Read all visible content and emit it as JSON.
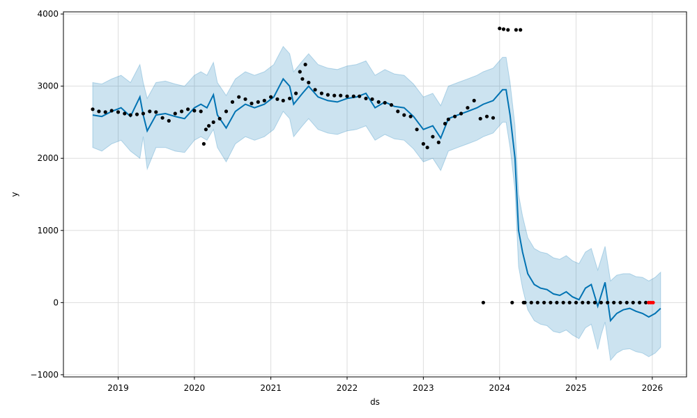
{
  "chart_data": {
    "type": "line",
    "xlabel": "ds",
    "ylabel": "y",
    "xlim": [
      "2018-04-14",
      "2026-06-14"
    ],
    "ylim": [
      -1030,
      4030
    ],
    "grid": true,
    "x_ticks": [
      "2019",
      "2020",
      "2021",
      "2022",
      "2023",
      "2024",
      "2025",
      "2026"
    ],
    "y_ticks": [
      "−1000",
      "0",
      "1000",
      "2000",
      "3000",
      "4000"
    ],
    "y_tick_values": [
      -1000,
      0,
      1000,
      2000,
      3000,
      4000
    ],
    "colors": {
      "forecast": "#0072b2",
      "uncertainty": "#0072b2",
      "observed": "#000000",
      "recent": "#ff0000",
      "grid": "#dddddd"
    },
    "series": [
      {
        "role": "forecast",
        "x": [
          "2018-09-01",
          "2018-10-15",
          "2018-12-01",
          "2019-01-15",
          "2019-03-01",
          "2019-04-15",
          "2019-05-01",
          "2019-05-20",
          "2019-07-01",
          "2019-08-15",
          "2019-10-01",
          "2019-11-15",
          "2020-01-01",
          "2020-02-01",
          "2020-03-01",
          "2020-04-01",
          "2020-04-20",
          "2020-06-01",
          "2020-07-15",
          "2020-09-01",
          "2020-10-15",
          "2020-12-01",
          "2021-01-15",
          "2021-03-01",
          "2021-04-01",
          "2021-04-20",
          "2021-06-01",
          "2021-07-01",
          "2021-08-15",
          "2021-10-01",
          "2021-11-15",
          "2022-01-01",
          "2022-02-15",
          "2022-04-01",
          "2022-05-15",
          "2022-07-01",
          "2022-08-15",
          "2022-10-01",
          "2022-11-15",
          "2023-01-01",
          "2023-02-15",
          "2023-03-25",
          "2023-05-01",
          "2023-06-15",
          "2023-08-01",
          "2023-09-15",
          "2023-10-15",
          "2023-12-01",
          "2024-01-15",
          "2024-02-01",
          "2024-02-20",
          "2024-03-15",
          "2024-04-01",
          "2024-04-20",
          "2024-05-15",
          "2024-06-15",
          "2024-07-15",
          "2024-08-15",
          "2024-09-15",
          "2024-10-15",
          "2024-11-15",
          "2024-12-15",
          "2025-01-15",
          "2025-02-15",
          "2025-03-15",
          "2025-04-15",
          "2025-05-01",
          "2025-05-20",
          "2025-06-15",
          "2025-07-15",
          "2025-08-15",
          "2025-09-15",
          "2025-10-15",
          "2025-11-15",
          "2025-12-15",
          "2026-01-15",
          "2026-02-10"
        ],
        "y": [
          2600,
          2580,
          2650,
          2700,
          2580,
          2850,
          2600,
          2380,
          2600,
          2620,
          2580,
          2550,
          2700,
          2750,
          2700,
          2880,
          2600,
          2420,
          2650,
          2750,
          2700,
          2750,
          2850,
          3100,
          3000,
          2750,
          2900,
          3000,
          2850,
          2800,
          2780,
          2830,
          2850,
          2900,
          2700,
          2780,
          2720,
          2700,
          2580,
          2400,
          2450,
          2280,
          2550,
          2600,
          2650,
          2700,
          2750,
          2800,
          2950,
          2950,
          2600,
          2000,
          1000,
          700,
          400,
          250,
          200,
          180,
          120,
          100,
          150,
          80,
          40,
          200,
          250,
          -50,
          100,
          280,
          -250,
          -150,
          -100,
          -80,
          -120,
          -150,
          -200,
          -150,
          -80
        ],
        "lower_band": [
          2150,
          2100,
          2200,
          2250,
          2100,
          2000,
          2300,
          1850,
          2150,
          2150,
          2100,
          2080,
          2250,
          2300,
          2250,
          2400,
          2150,
          1950,
          2200,
          2300,
          2250,
          2300,
          2400,
          2650,
          2550,
          2300,
          2450,
          2550,
          2400,
          2350,
          2330,
          2380,
          2400,
          2450,
          2250,
          2330,
          2270,
          2250,
          2130,
          1950,
          2000,
          1830,
          2100,
          2150,
          2200,
          2250,
          2300,
          2350,
          2500,
          2500,
          2150,
          1550,
          500,
          200,
          -100,
          -250,
          -300,
          -320,
          -400,
          -420,
          -380,
          -450,
          -500,
          -350,
          -300,
          -650,
          -450,
          -270,
          -800,
          -700,
          -650,
          -640,
          -680,
          -700,
          -750,
          -700,
          -620
        ],
        "upper_band": [
          3050,
          3030,
          3100,
          3150,
          3050,
          3300,
          3050,
          2830,
          3050,
          3070,
          3030,
          3000,
          3150,
          3200,
          3150,
          3330,
          3050,
          2870,
          3100,
          3200,
          3150,
          3200,
          3300,
          3550,
          3450,
          3200,
          3350,
          3450,
          3300,
          3250,
          3230,
          3280,
          3300,
          3350,
          3150,
          3230,
          3170,
          3150,
          3030,
          2850,
          2900,
          2730,
          3000,
          3050,
          3100,
          3150,
          3200,
          3250,
          3400,
          3400,
          3050,
          2450,
          1500,
          1200,
          900,
          750,
          700,
          680,
          620,
          600,
          650,
          580,
          540,
          700,
          750,
          450,
          600,
          780,
          300,
          380,
          400,
          400,
          360,
          350,
          300,
          350,
          420
        ]
      },
      {
        "role": "observed",
        "x": [
          "2018-09-01",
          "2018-10-01",
          "2018-11-01",
          "2018-12-01",
          "2019-01-01",
          "2019-02-01",
          "2019-03-01",
          "2019-04-01",
          "2019-05-01",
          "2019-06-01",
          "2019-07-01",
          "2019-08-01",
          "2019-09-01",
          "2019-10-01",
          "2019-11-01",
          "2019-12-01",
          "2020-01-01",
          "2020-02-01",
          "2020-02-15",
          "2020-02-25",
          "2020-03-10",
          "2020-04-01",
          "2020-05-01",
          "2020-06-01",
          "2020-07-01",
          "2020-08-01",
          "2020-09-01",
          "2020-10-01",
          "2020-11-01",
          "2020-12-01",
          "2021-01-01",
          "2021-02-01",
          "2021-03-01",
          "2021-04-01",
          "2021-05-01",
          "2021-05-20",
          "2021-06-01",
          "2021-06-15",
          "2021-07-01",
          "2021-08-01",
          "2021-09-01",
          "2021-10-01",
          "2021-11-01",
          "2021-12-01",
          "2022-01-01",
          "2022-02-01",
          "2022-03-01",
          "2022-04-01",
          "2022-05-01",
          "2022-06-01",
          "2022-07-01",
          "2022-08-01",
          "2022-09-01",
          "2022-10-01",
          "2022-11-01",
          "2022-12-01",
          "2023-01-01",
          "2023-01-20",
          "2023-02-15",
          "2023-03-15",
          "2023-04-15",
          "2023-05-01",
          "2023-06-01",
          "2023-07-01",
          "2023-08-01",
          "2023-09-01",
          "2023-10-01",
          "2023-10-15",
          "2023-11-01",
          "2023-12-01",
          "2024-01-01",
          "2024-01-20",
          "2024-02-10",
          "2024-03-01",
          "2024-03-20",
          "2024-04-10",
          "2024-04-25",
          "2024-05-01",
          "2024-06-01",
          "2024-07-01",
          "2024-08-01",
          "2024-09-01",
          "2024-10-01",
          "2024-11-01",
          "2024-12-01",
          "2025-01-01",
          "2025-02-01",
          "2025-03-01",
          "2025-04-01",
          "2025-05-01",
          "2025-06-01",
          "2025-07-01",
          "2025-08-01",
          "2025-09-01",
          "2025-10-01",
          "2025-11-01",
          "2025-12-01"
        ],
        "y": [
          2680,
          2650,
          2640,
          2660,
          2640,
          2620,
          2600,
          2610,
          2620,
          2650,
          2640,
          2560,
          2520,
          2620,
          2650,
          2680,
          2660,
          2650,
          2200,
          2400,
          2450,
          2500,
          2550,
          2650,
          2780,
          2850,
          2820,
          2760,
          2780,
          2800,
          2850,
          2820,
          2800,
          2830,
          2900,
          3200,
          3100,
          3300,
          3050,
          2950,
          2900,
          2880,
          2870,
          2870,
          2860,
          2860,
          2860,
          2830,
          2820,
          2780,
          2770,
          2740,
          2650,
          2600,
          2580,
          2400,
          2200,
          2150,
          2300,
          2220,
          2480,
          2540,
          2580,
          2620,
          2700,
          2800,
          2550,
          0,
          2580,
          2560,
          3800,
          3790,
          3780,
          0,
          3780,
          3780,
          0,
          0,
          0,
          0,
          0,
          0,
          0,
          0,
          0,
          0,
          0,
          0,
          0,
          0,
          0,
          0,
          0,
          0,
          0,
          0,
          0
        ]
      },
      {
        "role": "recent",
        "x": [
          "2025-12-15",
          "2025-12-25",
          "2026-01-05"
        ],
        "y": [
          0,
          0,
          0
        ]
      }
    ]
  }
}
